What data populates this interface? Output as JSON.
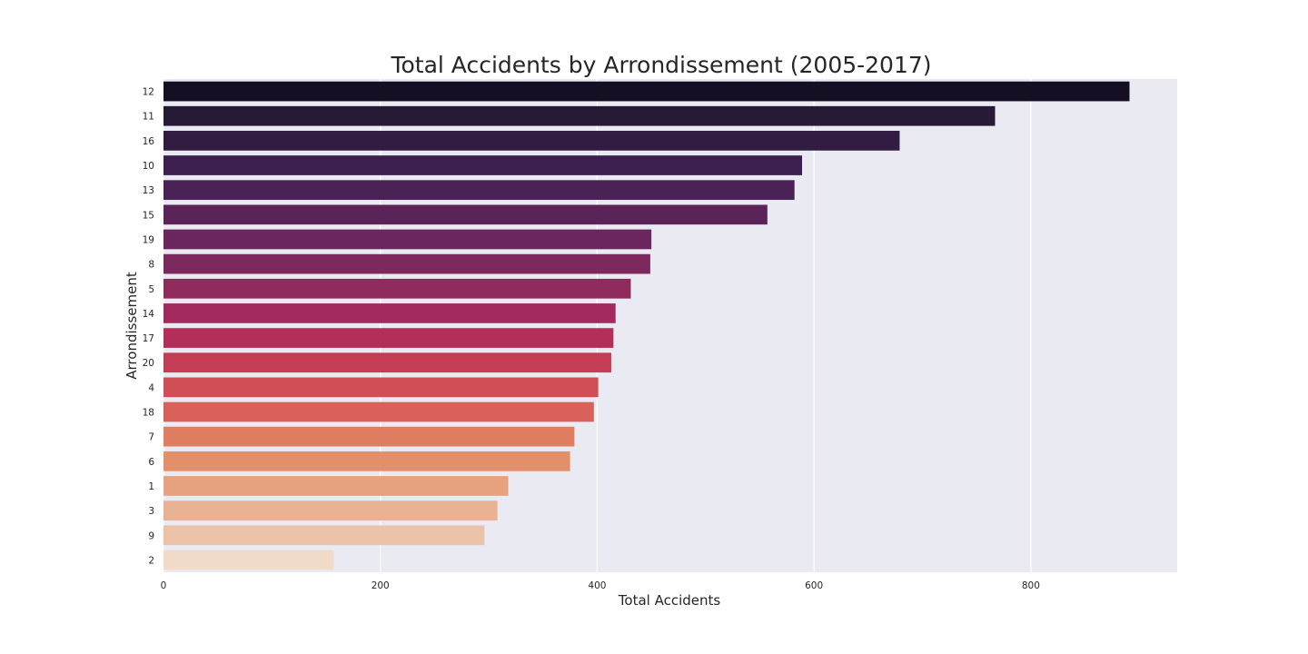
{
  "chart_data": {
    "type": "bar",
    "orientation": "horizontal",
    "title": "Total Accidents by Arrondissement (2005-2017)",
    "xlabel": "Total Accidents",
    "ylabel": "Arrondissement",
    "xlim": [
      0,
      935
    ],
    "xticks": [
      0,
      200,
      400,
      600,
      800
    ],
    "grid": true,
    "categories": [
      "12",
      "11",
      "16",
      "10",
      "13",
      "15",
      "19",
      "8",
      "5",
      "14",
      "17",
      "20",
      "4",
      "18",
      "7",
      "6",
      "1",
      "3",
      "9",
      "2"
    ],
    "values": [
      891,
      767,
      679,
      589,
      582,
      557,
      450,
      449,
      431,
      417,
      415,
      413,
      401,
      397,
      379,
      375,
      318,
      308,
      296,
      157
    ],
    "colors": [
      "#140f22",
      "#261a36",
      "#321c42",
      "#3d1f4f",
      "#4b2255",
      "#5a2459",
      "#6b275d",
      "#7c2a5e",
      "#8f2a5d",
      "#a22a5c",
      "#b52e59",
      "#c53c55",
      "#d04f56",
      "#d8625a",
      "#e07e61",
      "#e38f6a",
      "#e6a27e",
      "#e8b293",
      "#ecc2a8",
      "#f1dac7"
    ]
  }
}
